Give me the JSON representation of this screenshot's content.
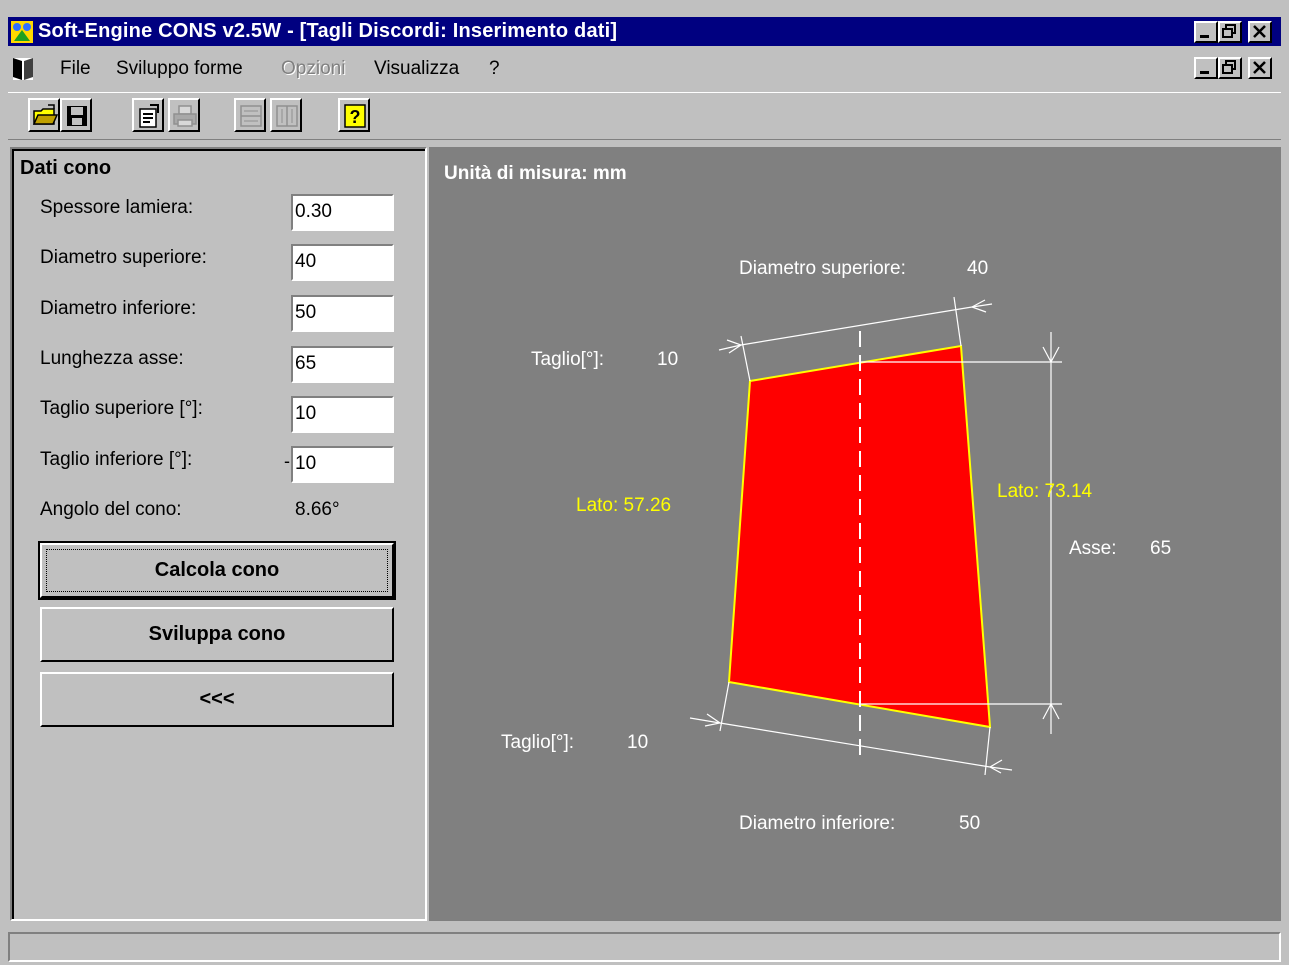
{
  "window": {
    "title": "Soft-Engine   CONS v2.5W - [Tagli Discordi: Inserimento dati]"
  },
  "menu": {
    "items": [
      {
        "label": "File",
        "enabled": true
      },
      {
        "label": "Sviluppo forme",
        "enabled": true
      },
      {
        "label": "Opzioni",
        "enabled": false
      },
      {
        "label": "Visualizza",
        "enabled": true
      },
      {
        "label": "?",
        "enabled": true
      }
    ]
  },
  "toolbar": {
    "buttons": [
      {
        "icon": "open-folder-icon",
        "enabled": true
      },
      {
        "icon": "save-disk-icon",
        "enabled": true
      },
      {
        "icon": "properties-icon",
        "enabled": true
      },
      {
        "icon": "printer-icon",
        "enabled": false
      },
      {
        "icon": "tile-horizontal-icon",
        "enabled": false
      },
      {
        "icon": "tile-vertical-icon",
        "enabled": false
      },
      {
        "icon": "help-icon",
        "enabled": true
      }
    ]
  },
  "panel": {
    "title": "Dati cono",
    "fields": [
      {
        "label": "Spessore lamiera:",
        "value": "0.30"
      },
      {
        "label": "Diametro superiore:",
        "value": "40"
      },
      {
        "label": "Diametro inferiore:",
        "value": "50"
      },
      {
        "label": "Lunghezza asse:",
        "value": "65"
      },
      {
        "label": "Taglio superiore [°]:",
        "value": "10"
      },
      {
        "label": "Taglio inferiore [°]:",
        "value": "10",
        "prefix": "-"
      }
    ],
    "angle": {
      "label": "Angolo del cono:",
      "value": "8.66°"
    },
    "buttons": {
      "calcola": "Calcola cono",
      "sviluppa": "Sviluppa cono",
      "back": "<<<"
    }
  },
  "drawing": {
    "unit_label": "Unità di misura: mm",
    "top_diameter": {
      "label": "Diametro superiore:",
      "value": "40"
    },
    "bottom_diameter": {
      "label": "Diametro inferiore:",
      "value": "50"
    },
    "top_cut": {
      "label": "Taglio[°]:",
      "value": "10"
    },
    "bottom_cut": {
      "label": "Taglio[°]:",
      "value": "10"
    },
    "left_side": "Lato: 57.26",
    "right_side": "Lato: 73.14",
    "axis": {
      "label": "Asse:",
      "value": "65"
    },
    "colors": {
      "background": "#808080",
      "fill": "#ff0000",
      "outline": "#ffff00",
      "lines": "#ffffff",
      "side_labels": "#ffff00"
    }
  },
  "statusbar": {
    "text": ""
  }
}
